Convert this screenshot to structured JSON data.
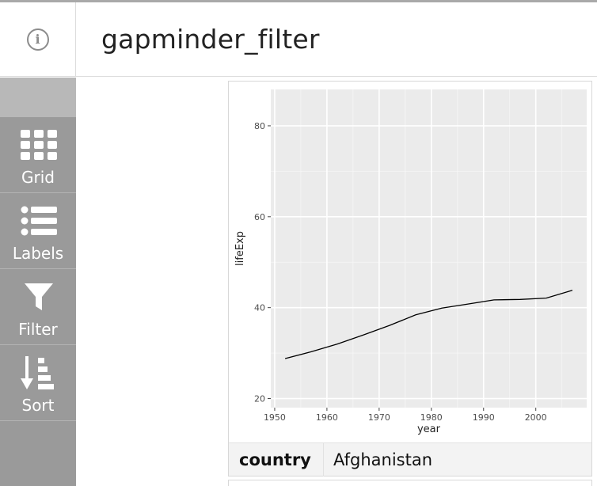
{
  "header": {
    "title": "gapminder_filter",
    "info_icon": "info-icon"
  },
  "sidebar": {
    "items": [
      {
        "label": "Grid",
        "icon": "grid-icon"
      },
      {
        "label": "Labels",
        "icon": "labels-icon"
      },
      {
        "label": "Filter",
        "icon": "filter-icon"
      },
      {
        "label": "Sort",
        "icon": "sort-icon"
      }
    ]
  },
  "panel": {
    "footer": {
      "key": "country",
      "value": "Afghanistan"
    }
  },
  "colors": {
    "sidebar": "#9a9a9a",
    "plot_background": "#ebebeb",
    "line": "#000000"
  },
  "chart_data": {
    "type": "line",
    "title": "",
    "xlabel": "year",
    "ylabel": "lifeExp",
    "xlim": [
      1949.25,
      2009.75
    ],
    "ylim": [
      18,
      88
    ],
    "xticks": [
      1950,
      1960,
      1970,
      1980,
      1990,
      2000
    ],
    "yticks": [
      20,
      40,
      60,
      80
    ],
    "grid": true,
    "series": [
      {
        "x": [
          1952,
          1957,
          1962,
          1967,
          1972,
          1977,
          1982,
          1987,
          1992,
          1997,
          2002,
          2007
        ],
        "values": [
          28.8,
          30.3,
          32.0,
          34.0,
          36.1,
          38.4,
          39.9,
          40.8,
          41.7,
          41.8,
          42.1,
          43.8
        ]
      }
    ]
  }
}
